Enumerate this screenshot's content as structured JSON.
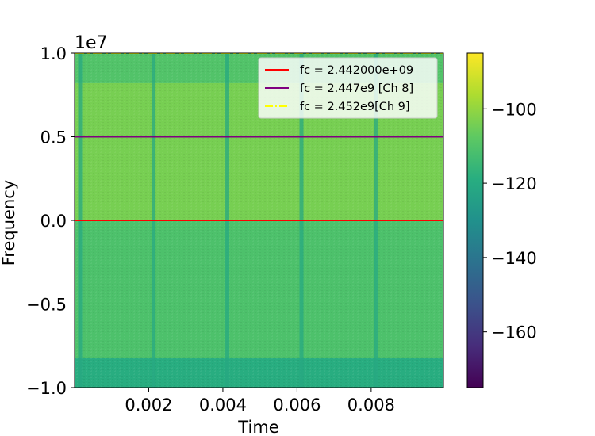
{
  "chart_data": {
    "type": "heatmap",
    "title": "",
    "xlabel": "Time",
    "ylabel": "Frequency",
    "y_scale_label": "1e7",
    "xlim": [
      0,
      0.00995
    ],
    "ylim": [
      -1.0,
      1.0
    ],
    "xticks": [
      0.002,
      0.004,
      0.006,
      0.008
    ],
    "xtick_labels": [
      "0.002",
      "0.004",
      "0.006",
      "0.008"
    ],
    "yticks": [
      -1.0,
      -0.5,
      0.0,
      0.5,
      1.0
    ],
    "ytick_labels": [
      "−1.0",
      "−0.5",
      "0.0",
      "0.5",
      "1.0"
    ],
    "colorbar": {
      "colormap": "viridis",
      "range": [
        -175,
        -85
      ],
      "ticks": [
        -160,
        -140,
        -120,
        -100
      ],
      "tick_labels": [
        "−160",
        "−140",
        "−120",
        "−100"
      ]
    },
    "bands": [
      {
        "y0": 0.82,
        "y1": 1.0,
        "level": -110
      },
      {
        "y0": 0.0,
        "y1": 0.82,
        "level": -104
      },
      {
        "y0": -0.82,
        "y1": 0.0,
        "level": -111
      },
      {
        "y0": -1.0,
        "y1": -0.82,
        "level": -119
      }
    ],
    "bursts_x": [
      0.00015,
      0.00213,
      0.00412,
      0.00612,
      0.00812
    ],
    "lines": [
      {
        "label": "fc = 2.442000e+09",
        "y": 0.0,
        "color": "#ff0000",
        "style": "solid"
      },
      {
        "label": "fc = 2.447e9 [Ch 8]",
        "y": 0.5,
        "color": "#800080",
        "style": "solid"
      },
      {
        "label": "fc = 2.452e9[Ch 9]",
        "y": 1.0,
        "color": "#ffff00",
        "style": "dashdot"
      }
    ],
    "legend_position": "top-right"
  }
}
